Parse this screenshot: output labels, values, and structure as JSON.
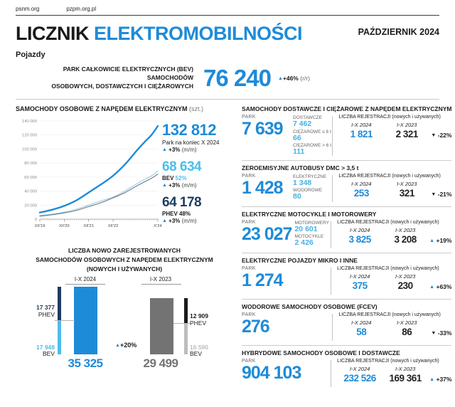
{
  "header": {
    "links": [
      "psnm.org",
      "pzpm.org.pl"
    ],
    "title_black": "LICZNIK",
    "title_blue": "ELEKTROMOBILNOŚCI",
    "issue_date": "PAŹDZIERNIK 2024",
    "section_label": "Pojazdy"
  },
  "banner": {
    "label_line1": "PARK CAŁKOWICIE ELEKTRYCZNYCH (BEV) SAMOCHODÓW",
    "label_line2": "OSOBOWYCH, DOSTAWCZYCH I CIĘŻAROWYCH",
    "value": "76 240",
    "change_arrow": "▲",
    "change": "+46%",
    "change_suffix": "(r/r)"
  },
  "colors": {
    "brand_blue": "#1e8bd8",
    "light_blue": "#4cbdeb",
    "navy": "#1d3c5f",
    "gray_bar": "#737373",
    "light_gray_bar": "#bdbdbd",
    "black_bar": "#1a1a1a",
    "bev_line": "#9ccbe2",
    "phev_line": "#687683",
    "dark_text": "#1a1a1a"
  },
  "chart_data": [
    {
      "type": "line",
      "title": "SAMOCHODY OSOBOWE Z NAPĘDEM ELEKTRYCZNYM",
      "title_suffix": "(szt.)",
      "ylim": [
        0,
        140000
      ],
      "y_ticks": [
        0,
        20000,
        40000,
        60000,
        80000,
        100000,
        120000,
        140000
      ],
      "y_tick_labels": [
        "0",
        "20 000",
        "40 000",
        "60 000",
        "80 000",
        "100 000",
        "120 000",
        "140 000"
      ],
      "x_months_total": 58,
      "x_ticks": [
        {
          "month": 0,
          "label": "XII'19"
        },
        {
          "month": 12,
          "label": "XII'20"
        },
        {
          "month": 24,
          "label": "XII'21"
        },
        {
          "month": 36,
          "label": "XII'22"
        },
        {
          "month": 58,
          "label": "X'24"
        }
      ],
      "series": [
        {
          "name": "BEV",
          "color_key": "bev_line",
          "width": 1.1,
          "months": [
            0,
            6,
            12,
            18,
            24,
            30,
            36,
            42,
            48,
            52,
            55,
            58
          ],
          "values": [
            5100,
            7100,
            10000,
            14200,
            20100,
            26000,
            31500,
            40500,
            51000,
            57500,
            62000,
            68634
          ]
        },
        {
          "name": "PHEV",
          "color_key": "phev_line",
          "width": 1.1,
          "months": [
            0,
            6,
            12,
            18,
            24,
            30,
            36,
            42,
            48,
            52,
            55,
            58
          ],
          "values": [
            4300,
            6300,
            8900,
            12600,
            17900,
            23400,
            30400,
            38000,
            48000,
            54000,
            58500,
            64178
          ]
        },
        {
          "name": "RAZEM",
          "color_key": "brand_blue",
          "width": 2.4,
          "months": [
            0,
            6,
            12,
            18,
            24,
            30,
            36,
            42,
            48,
            52,
            55,
            58
          ],
          "values": [
            9400,
            13400,
            18900,
            26800,
            38000,
            49400,
            61900,
            78500,
            99000,
            111500,
            120500,
            132812
          ]
        }
      ],
      "legend_stats": [
        {
          "value": "132 812",
          "caption": "Park na koniec X 2024",
          "caption_highlight": "",
          "highlight_color": "#1a1a1a",
          "change": "+3%",
          "change_suffix": "(m/m)",
          "color_key": "brand_blue"
        },
        {
          "value": "68 634",
          "caption": "BEV",
          "caption_highlight": "52%",
          "highlight_color": "#4cbdeb",
          "change": "+3%",
          "change_suffix": "(m/m)",
          "color_key": "light_blue"
        },
        {
          "value": "64 178",
          "caption": "PHEV",
          "caption_highlight": "48%",
          "highlight_color": "#1a1a1a",
          "change": "+3%",
          "change_suffix": "(m/m)",
          "color_key": "navy"
        }
      ]
    },
    {
      "type": "bar",
      "title_lines": [
        "LICZBA NOWO ZAREJESTROWANYCH",
        "SAMOCHODÓW OSOBOWYCH Z NAPĘDEM ELEKTRYCZNYM",
        "(NOWYCH I UŻYWANYCH)"
      ],
      "change_arrow": "▲",
      "change": "+20%",
      "groups": [
        {
          "period": "I-X 2024",
          "side": "left",
          "total": 35325,
          "total_label": "35 325",
          "total_color_key": "brand_blue",
          "segments": [
            {
              "name": "PHEV",
              "value": 17377,
              "label": "17 377",
              "color_key": "navy"
            },
            {
              "name": "BEV",
              "value": 17948,
              "label": "17 948",
              "color_key": "light_blue"
            }
          ]
        },
        {
          "period": "I-X 2023",
          "side": "right",
          "total": 29499,
          "total_label": "29 499",
          "total_color_key": "gray_bar",
          "segments": [
            {
              "name": "PHEV",
              "value": 12909,
              "label": "12 909",
              "color_key": "black_bar"
            },
            {
              "name": "BEV",
              "value": 16590,
              "label": "16 590",
              "color_key": "light_gray_bar"
            }
          ]
        }
      ]
    }
  ],
  "reg_common": {
    "park_label": "PARK",
    "header": "LICZBA REJESTRACJI",
    "header_suffix": "(nowych i używanych)",
    "col1": "I-X 2024",
    "col2": "I-X 2023"
  },
  "sections": [
    {
      "title": "SAMOCHODY DOSTAWCZE I CIĘŻAROWE Z NAPĘDEM ELEKTRYCZNYM",
      "park_value": "7 639",
      "substats": [
        {
          "label": "DOSTAWCZE",
          "value": "7 462"
        },
        {
          "label": "CIĘŻAROWE ≤ 6 t",
          "value": "66"
        },
        {
          "label": "CIĘŻAROWE > 6 t",
          "value": "111"
        }
      ],
      "reg": {
        "val1": "1 821",
        "val2": "2 321",
        "change": "-22%",
        "direction": "down"
      }
    },
    {
      "title": "ZEROEMISYJNE AUTOBUSY DMC > 3,5 t",
      "park_value": "1 428",
      "substats": [
        {
          "label": "ELEKTRYCZNE",
          "value": "1 348"
        },
        {
          "label": "WODOROWE",
          "value": "80"
        }
      ],
      "reg": {
        "val1": "253",
        "val2": "321",
        "change": "-21%",
        "direction": "down"
      }
    },
    {
      "title": "ELEKTRYCZNE MOTOCYKLE I MOTOROWERY",
      "park_value": "23 027",
      "substats": [
        {
          "label": "MOTOROWERY",
          "value": "20 601"
        },
        {
          "label": "MOTOCYKLE",
          "value": "2 426"
        }
      ],
      "reg": {
        "val1": "3 825",
        "val2": "3 208",
        "change": "+19%",
        "direction": "up"
      }
    },
    {
      "title": "ELEKTRYCZNE POJAZDY MIKRO I INNE",
      "park_value": "1 274",
      "substats": [],
      "reg": {
        "val1": "375",
        "val2": "230",
        "change": "+63%",
        "direction": "up"
      }
    },
    {
      "title": "WODOROWE SAMOCHODY OSOBOWE (FCEV)",
      "park_value": "276",
      "substats": [],
      "reg": {
        "val1": "58",
        "val2": "86",
        "change": "-33%",
        "direction": "down"
      }
    },
    {
      "title": "HYBRYDOWE SAMOCHODY OSOBOWE I DOSTAWCZE",
      "park_value": "904 103",
      "substats": [],
      "reg": {
        "val1": "232 526",
        "val2": "169 361",
        "change": "+37%",
        "direction": "up"
      }
    }
  ]
}
